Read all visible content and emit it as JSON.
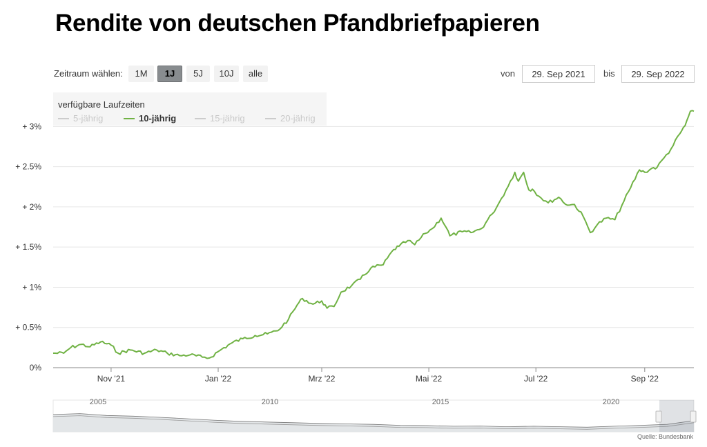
{
  "title": "Rendite von deutschen Pfandbriefpapieren",
  "controls": {
    "range_label": "Zeitraum wählen:",
    "range_buttons": [
      "1M",
      "1J",
      "5J",
      "10J",
      "alle"
    ],
    "active_range": "1J",
    "from_label": "von",
    "from_value": "29. Sep 2021",
    "to_label": "bis",
    "to_value": "29. Sep 2022"
  },
  "legend": {
    "title": "verfügbare Laufzeiten",
    "items": [
      {
        "label": "5-jährig",
        "active": false
      },
      {
        "label": "10-jährig",
        "active": true
      },
      {
        "label": "15-jährig",
        "active": false
      },
      {
        "label": "20-jährig",
        "active": false
      }
    ]
  },
  "source": "Quelle: Bundesbank",
  "colors": {
    "series": "#70b244",
    "inactive": "#cccccc",
    "grid": "#e6e6e6",
    "navigator_fill": "#e3e6e8"
  },
  "chart_data": {
    "type": "line",
    "title": "Rendite von deutschen Pfandbriefpapieren",
    "xlabel": "",
    "ylabel": "",
    "x_range": [
      "2021-09-29",
      "2022-09-29"
    ],
    "ylim": [
      0,
      3.2
    ],
    "y_ticks": [
      0,
      0.5,
      1,
      1.5,
      2,
      2.5,
      3
    ],
    "y_tick_labels": [
      "0%",
      "+ 0.5%",
      "+ 1%",
      "+ 1.5%",
      "+ 2%",
      "+ 2.5%",
      "+ 3%"
    ],
    "x_ticks": [
      "2021-11-01",
      "2022-01-01",
      "2022-03-01",
      "2022-05-01",
      "2022-07-01",
      "2022-09-01"
    ],
    "x_tick_labels": [
      "Nov '21",
      "Jan '22",
      "Mrz '22",
      "Mai '22",
      "Jul '22",
      "Sep '22"
    ],
    "series": [
      {
        "name": "10-jährig",
        "x": [
          "2021-09-29",
          "2021-10-05",
          "2021-10-09",
          "2021-10-15",
          "2021-10-20",
          "2021-10-26",
          "2021-11-01",
          "2021-11-05",
          "2021-11-12",
          "2021-11-20",
          "2021-11-27",
          "2021-12-03",
          "2021-12-10",
          "2021-12-16",
          "2021-12-23",
          "2021-12-27",
          "2022-01-03",
          "2022-01-09",
          "2022-01-15",
          "2022-01-22",
          "2022-01-29",
          "2022-02-04",
          "2022-02-10",
          "2022-02-15",
          "2022-02-18",
          "2022-02-24",
          "2022-03-01",
          "2022-03-04",
          "2022-03-08",
          "2022-03-12",
          "2022-03-18",
          "2022-03-23",
          "2022-03-29",
          "2022-04-05",
          "2022-04-11",
          "2022-04-14",
          "2022-04-19",
          "2022-04-23",
          "2022-04-29",
          "2022-05-03",
          "2022-05-08",
          "2022-05-11",
          "2022-05-13",
          "2022-05-20",
          "2022-05-25",
          "2022-05-31",
          "2022-06-06",
          "2022-06-10",
          "2022-06-14",
          "2022-06-19",
          "2022-06-21",
          "2022-06-24",
          "2022-06-27",
          "2022-06-29",
          "2022-07-04",
          "2022-07-08",
          "2022-07-14",
          "2022-07-19",
          "2022-07-23",
          "2022-07-28",
          "2022-08-01",
          "2022-08-05",
          "2022-08-10",
          "2022-08-15",
          "2022-08-19",
          "2022-08-24",
          "2022-08-29",
          "2022-09-01",
          "2022-09-05",
          "2022-09-08",
          "2022-09-12",
          "2022-09-16",
          "2022-09-21",
          "2022-09-24",
          "2022-09-27",
          "2022-09-29"
        ],
        "values": [
          0.18,
          0.18,
          0.25,
          0.29,
          0.26,
          0.32,
          0.28,
          0.18,
          0.22,
          0.18,
          0.22,
          0.18,
          0.15,
          0.16,
          0.13,
          0.12,
          0.23,
          0.31,
          0.36,
          0.4,
          0.42,
          0.46,
          0.6,
          0.78,
          0.86,
          0.79,
          0.83,
          0.74,
          0.76,
          0.94,
          1.02,
          1.1,
          1.24,
          1.28,
          1.47,
          1.51,
          1.58,
          1.53,
          1.67,
          1.73,
          1.86,
          1.74,
          1.64,
          1.69,
          1.68,
          1.73,
          1.91,
          2.05,
          2.21,
          2.43,
          2.32,
          2.43,
          2.21,
          2.22,
          2.11,
          2.05,
          2.12,
          2.02,
          2.03,
          1.88,
          1.68,
          1.78,
          1.86,
          1.84,
          2.02,
          2.24,
          2.46,
          2.43,
          2.48,
          2.49,
          2.61,
          2.72,
          2.91,
          3.01,
          3.19,
          3.19
        ]
      }
    ],
    "navigator": {
      "x_tick_labels": [
        "2005",
        "2010",
        "2015",
        "2020"
      ]
    }
  }
}
